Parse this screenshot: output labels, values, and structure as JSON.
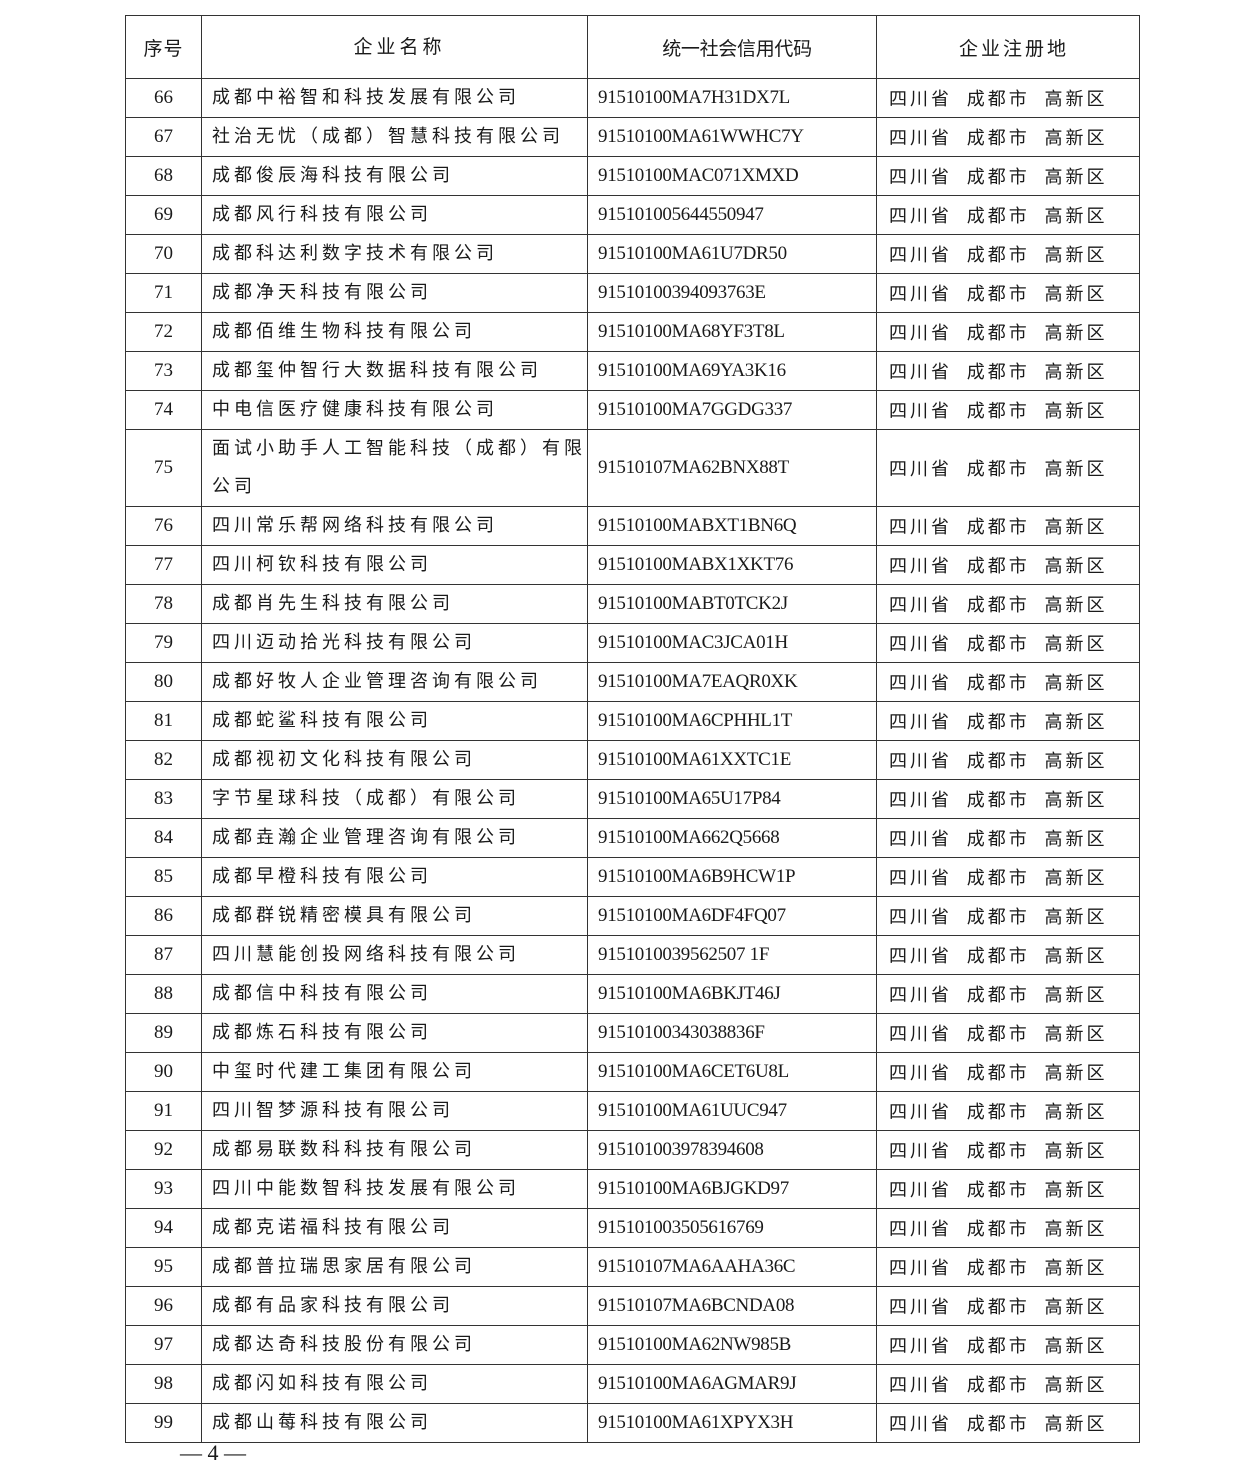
{
  "table": {
    "headers": [
      "序号",
      "企业名称",
      "统一社会信用代码",
      "企业注册地"
    ],
    "rows": [
      [
        "66",
        "成都中裕智和科技发展有限公司",
        "91510100MA7H31DX7L",
        "四川省 成都市 高新区"
      ],
      [
        "67",
        "社治无忧（成都）智慧科技有限公司",
        "91510100MA61WWHC7Y",
        "四川省 成都市 高新区"
      ],
      [
        "68",
        "成都俊辰海科技有限公司",
        "91510100MAC071XMXD",
        "四川省 成都市 高新区"
      ],
      [
        "69",
        "成都风行科技有限公司",
        "915101005644550947",
        "四川省 成都市 高新区"
      ],
      [
        "70",
        "成都科达利数字技术有限公司",
        "91510100MA61U7DR50",
        "四川省 成都市 高新区"
      ],
      [
        "71",
        "成都净天科技有限公司",
        "91510100394093763E",
        "四川省 成都市 高新区"
      ],
      [
        "72",
        "成都佰维生物科技有限公司",
        "91510100MA68YF3T8L",
        "四川省 成都市 高新区"
      ],
      [
        "73",
        "成都玺仲智行大数据科技有限公司",
        "91510100MA69YA3K16",
        "四川省 成都市 高新区"
      ],
      [
        "74",
        "中电信医疗健康科技有限公司",
        "91510100MA7GGDG337",
        "四川省 成都市 高新区"
      ],
      [
        "75",
        "面试小助手人工智能科技（成都）有限公司",
        "91510107MA62BNX88T",
        "四川省 成都市 高新区"
      ],
      [
        "76",
        "四川常乐帮网络科技有限公司",
        "91510100MABXT1BN6Q",
        "四川省 成都市 高新区"
      ],
      [
        "77",
        "四川柯钦科技有限公司",
        "91510100MABX1XKT76",
        "四川省 成都市 高新区"
      ],
      [
        "78",
        "成都肖先生科技有限公司",
        "91510100MABT0TCK2J",
        "四川省 成都市 高新区"
      ],
      [
        "79",
        "四川迈动拾光科技有限公司",
        "91510100MAC3JCA01H",
        "四川省 成都市 高新区"
      ],
      [
        "80",
        "成都好牧人企业管理咨询有限公司",
        "91510100MA7EAQR0XK",
        "四川省 成都市 高新区"
      ],
      [
        "81",
        "成都蛇鲨科技有限公司",
        "91510100MA6CPHHL1T",
        "四川省 成都市 高新区"
      ],
      [
        "82",
        "成都视初文化科技有限公司",
        "91510100MA61XXTC1E",
        "四川省 成都市 高新区"
      ],
      [
        "83",
        "字节星球科技（成都）有限公司",
        "91510100MA65U17P84",
        "四川省 成都市 高新区"
      ],
      [
        "84",
        "成都垚瀚企业管理咨询有限公司",
        "91510100MA662Q5668",
        "四川省 成都市 高新区"
      ],
      [
        "85",
        "成都早橙科技有限公司",
        "91510100MA6B9HCW1P",
        "四川省 成都市 高新区"
      ],
      [
        "86",
        "成都群锐精密模具有限公司",
        "91510100MA6DF4FQ07",
        "四川省 成都市 高新区"
      ],
      [
        "87",
        "四川慧能创投网络科技有限公司",
        "9151010039562507 1F",
        "四川省 成都市 高新区"
      ],
      [
        "88",
        "成都信中科技有限公司",
        "91510100MA6BKJT46J",
        "四川省 成都市 高新区"
      ],
      [
        "89",
        "成都炼石科技有限公司",
        "91510100343038836F",
        "四川省 成都市 高新区"
      ],
      [
        "90",
        "中玺时代建工集团有限公司",
        "91510100MA6CET6U8L",
        "四川省 成都市 高新区"
      ],
      [
        "91",
        "四川智梦源科技有限公司",
        "91510100MA61UUC947",
        "四川省 成都市 高新区"
      ],
      [
        "92",
        "成都易联数科科技有限公司",
        "915101003978394608",
        "四川省 成都市 高新区"
      ],
      [
        "93",
        "四川中能数智科技发展有限公司",
        "91510100MA6BJGKD97",
        "四川省 成都市 高新区"
      ],
      [
        "94",
        "成都克诺福科技有限公司",
        "915101003505616769",
        "四川省 成都市 高新区"
      ],
      [
        "95",
        "成都普拉瑞思家居有限公司",
        "91510107MA6AAHA36C",
        "四川省 成都市 高新区"
      ],
      [
        "96",
        "成都有品家科技有限公司",
        "91510107MA6BCNDA08",
        "四川省 成都市 高新区"
      ],
      [
        "97",
        "成都达奇科技股份有限公司",
        "91510100MA62NW985B",
        "四川省 成都市 高新区"
      ],
      [
        "98",
        "成都闪如科技有限公司",
        "91510100MA6AGMAR9J",
        "四川省 成都市 高新区"
      ],
      [
        "99",
        "成都山莓科技有限公司",
        "91510100MA61XPYX3H",
        "四川省 成都市 高新区"
      ]
    ]
  },
  "footer": {
    "page_number": "— 4 —"
  }
}
